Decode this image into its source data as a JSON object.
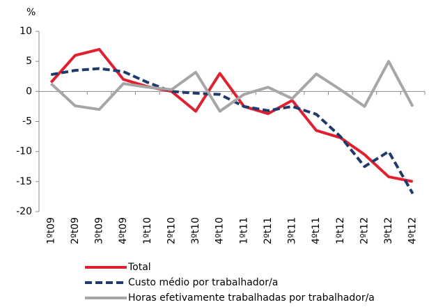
{
  "chart_data": {
    "type": "line",
    "y_label": "%",
    "categories": [
      "1ºt09",
      "2ºt09",
      "3ºt09",
      "4ºt09",
      "1ºt10",
      "2ºt10",
      "3ºt10",
      "4ºt10",
      "1ºt11",
      "2ºt11",
      "3ºt11",
      "4ºt11",
      "1ºt12",
      "2ºt12",
      "3ºt12",
      "4ºt12"
    ],
    "series": [
      {
        "name": "Total",
        "color": "#e0202f",
        "dash": false,
        "values": [
          1.5,
          6,
          7,
          2,
          0.8,
          0,
          -3.3,
          3,
          -2.5,
          -3.7,
          -1.5,
          -6.5,
          -7.7,
          -10.5,
          -14.2,
          -15
        ]
      },
      {
        "name": "Custo médio por trabalhador/a",
        "color": "#1f3a6b",
        "dash": true,
        "values": [
          2.8,
          3.5,
          3.8,
          3.3,
          1.5,
          0,
          -0.3,
          -0.5,
          -2.5,
          -3.2,
          -2.5,
          -3.8,
          -7.5,
          -12.5,
          -10,
          -17
        ]
      },
      {
        "name": "Horas efetivamente trabalhadas por trabalhador/a",
        "color": "#a6a6a6",
        "dash": false,
        "values": [
          1.3,
          -2.4,
          -3,
          1.3,
          0.7,
          0.3,
          3.2,
          -3.3,
          -0.5,
          0.7,
          -1.2,
          2.9,
          0.3,
          -2.5,
          5,
          -2.5
        ]
      }
    ],
    "ylim": [
      -20,
      10
    ],
    "yticks": [
      -20,
      -15,
      -10,
      -5,
      0,
      5,
      10
    ]
  }
}
